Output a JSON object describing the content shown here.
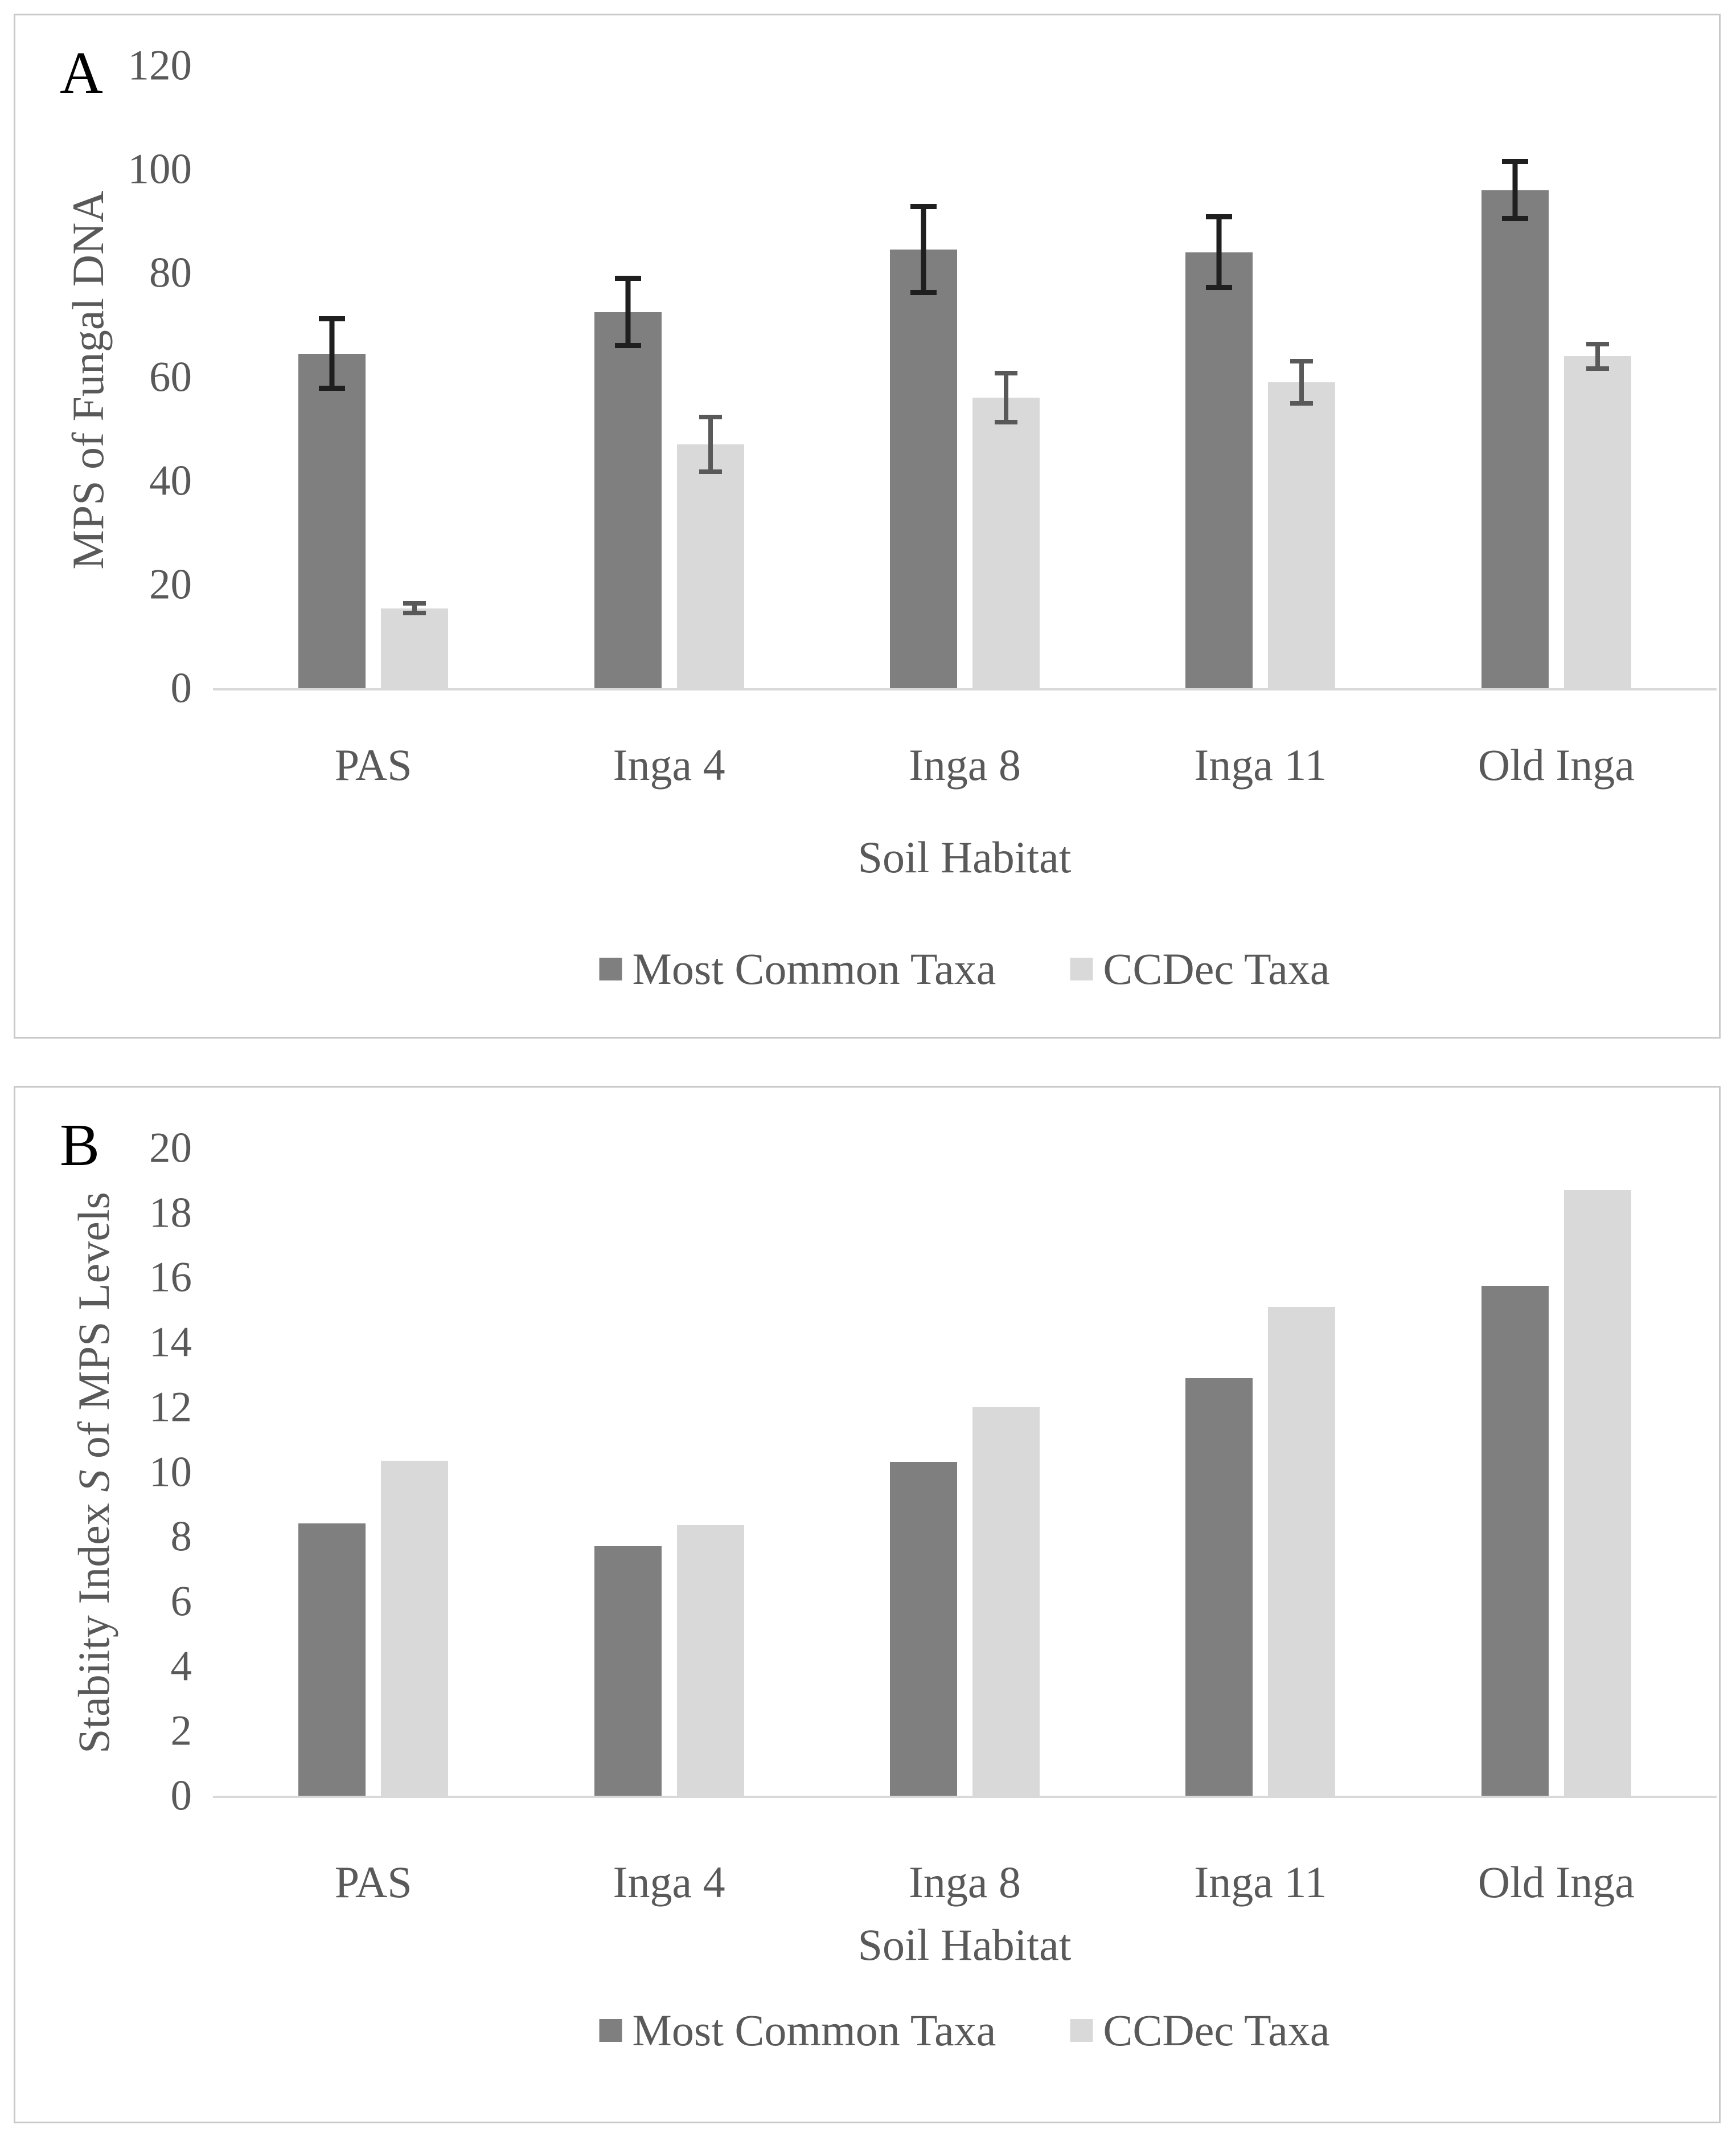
{
  "figure": {
    "panels": [
      {
        "letter": "A",
        "x_axis_title": "Soil Habitat"
      },
      {
        "letter": "B",
        "x_axis_title": "Soil Habitat"
      }
    ]
  },
  "colors": {
    "background": "#FFFFFF",
    "panel_border": "#C9C9C9",
    "axis_line": "#D9D9D9",
    "axis_text": "#595959",
    "panel_letter": "#000000",
    "series_dark": "#7F7F7F",
    "series_light": "#D9D9D9",
    "error_dark": "#1F1F1F",
    "error_light": "#595959"
  },
  "chart_data": [
    {
      "type": "bar",
      "panel": "A",
      "title": "",
      "xlabel": "Soil Habitat",
      "ylabel": "MPS of Fungal DNA",
      "ylabel_parts": [
        {
          "text": "MPS of Fungal DNA",
          "italic": false
        }
      ],
      "categories": [
        "PAS",
        "Inga 4",
        "Inga 8",
        "Inga 11",
        "Old Inga"
      ],
      "series": [
        {
          "name": "Most Common Taxa",
          "color": "#7F7F7F",
          "values": [
            64.5,
            72.5,
            84.5,
            84,
            96
          ],
          "errors": [
            7.2,
            7,
            8.8,
            7.3,
            6
          ],
          "error_color": "#1F1F1F"
        },
        {
          "name": "CCDec Taxa",
          "color": "#D9D9D9",
          "values": [
            15.4,
            47,
            56,
            59,
            64
          ],
          "errors": [
            1.4,
            5.7,
            5.2,
            4.5,
            2.8
          ],
          "error_color": "#595959"
        }
      ],
      "ylim": [
        0,
        120
      ],
      "ytick_step": 20,
      "grid": false,
      "legend_position": "bottom"
    },
    {
      "type": "bar",
      "panel": "B",
      "title": "",
      "xlabel": "Soil Habitat",
      "ylabel": "Stabiity Index S of MPS Levels",
      "ylabel_parts": [
        {
          "text": "Stabiity Index ",
          "italic": false
        },
        {
          "text": "S",
          "italic": true
        },
        {
          "text": " of MPS Levels",
          "italic": false
        }
      ],
      "categories": [
        "PAS",
        "Inga 4",
        "Inga 8",
        "Inga 11",
        "Old Inga"
      ],
      "series": [
        {
          "name": "Most Common Taxa",
          "color": "#7F7F7F",
          "values": [
            8.4,
            7.7,
            10.3,
            12.9,
            15.75
          ],
          "errors": null,
          "error_color": "#1F1F1F"
        },
        {
          "name": "CCDec Taxa",
          "color": "#D9D9D9",
          "values": [
            10.35,
            8.35,
            12.0,
            15.1,
            18.7
          ],
          "errors": null,
          "error_color": "#595959"
        }
      ],
      "ylim": [
        0,
        20
      ],
      "ytick_step": 2,
      "grid": false,
      "legend_position": "bottom"
    }
  ]
}
